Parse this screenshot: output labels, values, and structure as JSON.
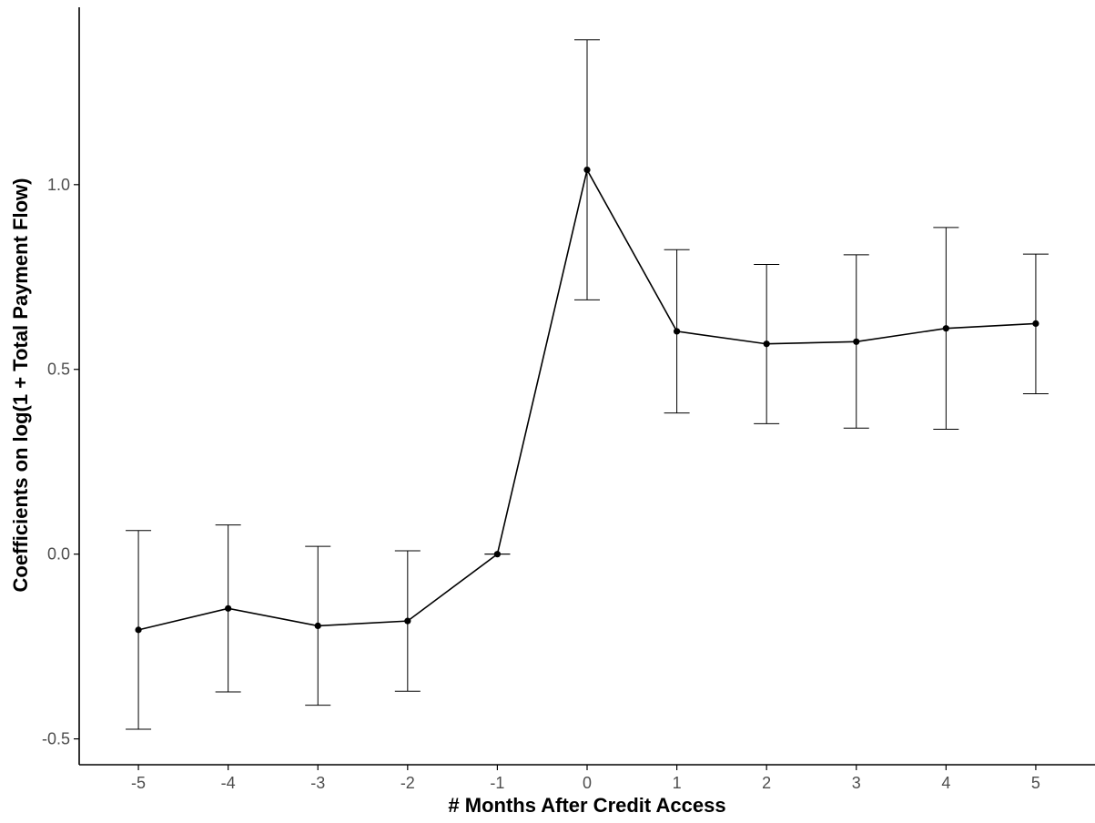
{
  "chart_data": {
    "type": "line",
    "title": "",
    "xlabel": "# Months After Credit Access",
    "ylabel": "Coefficients on log(1 + Total Payment Flow)",
    "x": [
      -5,
      -4,
      -3,
      -2,
      -1,
      0,
      1,
      2,
      3,
      4,
      5
    ],
    "x_tick_labels": [
      "-5",
      "-4",
      "-3",
      "-2",
      "-1",
      "0",
      "1",
      "2",
      "3",
      "4",
      "5"
    ],
    "y_ticks": [
      -0.5,
      0.0,
      0.5,
      1.0
    ],
    "y_tick_labels": [
      "-0.5",
      "0.0",
      "0.5",
      "1.0"
    ],
    "xlim": [
      -5.66,
      5.66
    ],
    "ylim": [
      -0.57,
      1.48
    ],
    "grid": false,
    "series": [
      {
        "values": [
          -0.205,
          -0.147,
          -0.194,
          -0.181,
          0.0,
          1.04,
          0.603,
          0.569,
          0.575,
          0.611,
          0.624
        ],
        "ci_low": [
          -0.474,
          -0.373,
          -0.409,
          -0.371,
          0.0,
          0.688,
          0.382,
          0.353,
          0.341,
          0.338,
          0.434
        ],
        "ci_high": [
          0.064,
          0.079,
          0.021,
          0.009,
          0.0,
          1.392,
          0.824,
          0.784,
          0.81,
          0.884,
          0.812
        ]
      }
    ],
    "colors": {
      "line": "#000000",
      "point": "#000000",
      "errorbar": "#000000",
      "axis": "#000000",
      "tick_label": "#4d4d4d"
    }
  }
}
